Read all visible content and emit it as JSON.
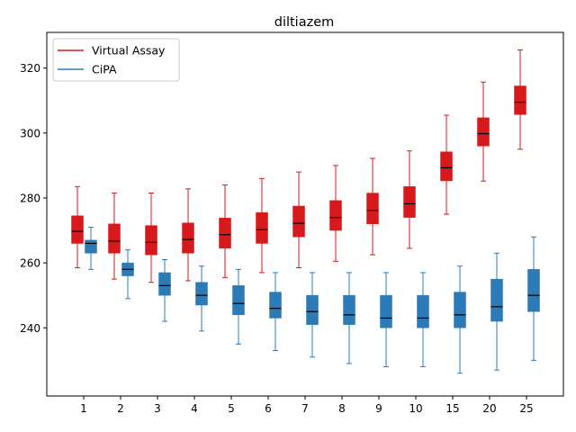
{
  "chart_data": {
    "type": "box",
    "title": "diltiazem",
    "xlabel": "",
    "ylabel": "",
    "categories": [
      "1",
      "2",
      "3",
      "4",
      "5",
      "6",
      "7",
      "8",
      "9",
      "10",
      "15",
      "20",
      "25"
    ],
    "ylim": [
      219,
      331
    ],
    "yticks": [
      240,
      260,
      280,
      300,
      320
    ],
    "grid": false,
    "legend_position": "upper left",
    "series": [
      {
        "name": "Virtual Assay",
        "color": "#d7191c",
        "boxes": [
          {
            "whislo": 258.5,
            "q1": 266,
            "med": 269.7,
            "q3": 274.5,
            "whishi": 283.5
          },
          {
            "whislo": 255,
            "q1": 263,
            "med": 266.7,
            "q3": 272,
            "whishi": 281.5
          },
          {
            "whislo": 254,
            "q1": 262.5,
            "med": 266.3,
            "q3": 271.5,
            "whishi": 281.5
          },
          {
            "whislo": 254.5,
            "q1": 263,
            "med": 267.2,
            "q3": 272.3,
            "whishi": 282.8
          },
          {
            "whislo": 255.5,
            "q1": 264.5,
            "med": 268.7,
            "q3": 273.8,
            "whishi": 284
          },
          {
            "whislo": 257,
            "q1": 266,
            "med": 270.2,
            "q3": 275.5,
            "whishi": 286
          },
          {
            "whislo": 258.5,
            "q1": 268,
            "med": 272.2,
            "q3": 277.5,
            "whishi": 288
          },
          {
            "whislo": 260.5,
            "q1": 270,
            "med": 274,
            "q3": 279.2,
            "whishi": 290
          },
          {
            "whislo": 262.5,
            "q1": 272,
            "med": 276.2,
            "q3": 281.5,
            "whishi": 292.2
          },
          {
            "whislo": 264.5,
            "q1": 274,
            "med": 278.2,
            "q3": 283.5,
            "whishi": 294.5
          },
          {
            "whislo": 275,
            "q1": 285.3,
            "med": 289.3,
            "q3": 294.2,
            "whishi": 305.5
          },
          {
            "whislo": 285.2,
            "q1": 296,
            "med": 299.8,
            "q3": 304.7,
            "whishi": 315.7
          },
          {
            "whislo": 295,
            "q1": 305.7,
            "med": 309.5,
            "q3": 314.5,
            "whishi": 325.6
          }
        ]
      },
      {
        "name": "CiPA",
        "color": "#2c7bb6",
        "boxes": [
          {
            "whislo": 258,
            "q1": 263,
            "med": 266,
            "q3": 267,
            "whishi": 271
          },
          {
            "whislo": 249,
            "q1": 256,
            "med": 258,
            "q3": 260,
            "whishi": 264
          },
          {
            "whislo": 242,
            "q1": 250,
            "med": 253,
            "q3": 257,
            "whishi": 261
          },
          {
            "whislo": 239,
            "q1": 247,
            "med": 250,
            "q3": 254,
            "whishi": 259
          },
          {
            "whislo": 235,
            "q1": 244,
            "med": 247.5,
            "q3": 253,
            "whishi": 258
          },
          {
            "whislo": 233,
            "q1": 243,
            "med": 246,
            "q3": 251,
            "whishi": 257
          },
          {
            "whislo": 231,
            "q1": 241,
            "med": 245,
            "q3": 250,
            "whishi": 257
          },
          {
            "whislo": 229,
            "q1": 241,
            "med": 244,
            "q3": 250,
            "whishi": 257
          },
          {
            "whislo": 228,
            "q1": 240,
            "med": 243,
            "q3": 250,
            "whishi": 257
          },
          {
            "whislo": 228,
            "q1": 240,
            "med": 243,
            "q3": 250,
            "whishi": 257
          },
          {
            "whislo": 226,
            "q1": 240,
            "med": 244,
            "q3": 251,
            "whishi": 259
          },
          {
            "whislo": 227,
            "q1": 242,
            "med": 246.5,
            "q3": 255,
            "whishi": 263
          },
          {
            "whislo": 230,
            "q1": 245,
            "med": 250,
            "q3": 258,
            "whishi": 268
          }
        ]
      }
    ],
    "median_color": "#000000"
  }
}
